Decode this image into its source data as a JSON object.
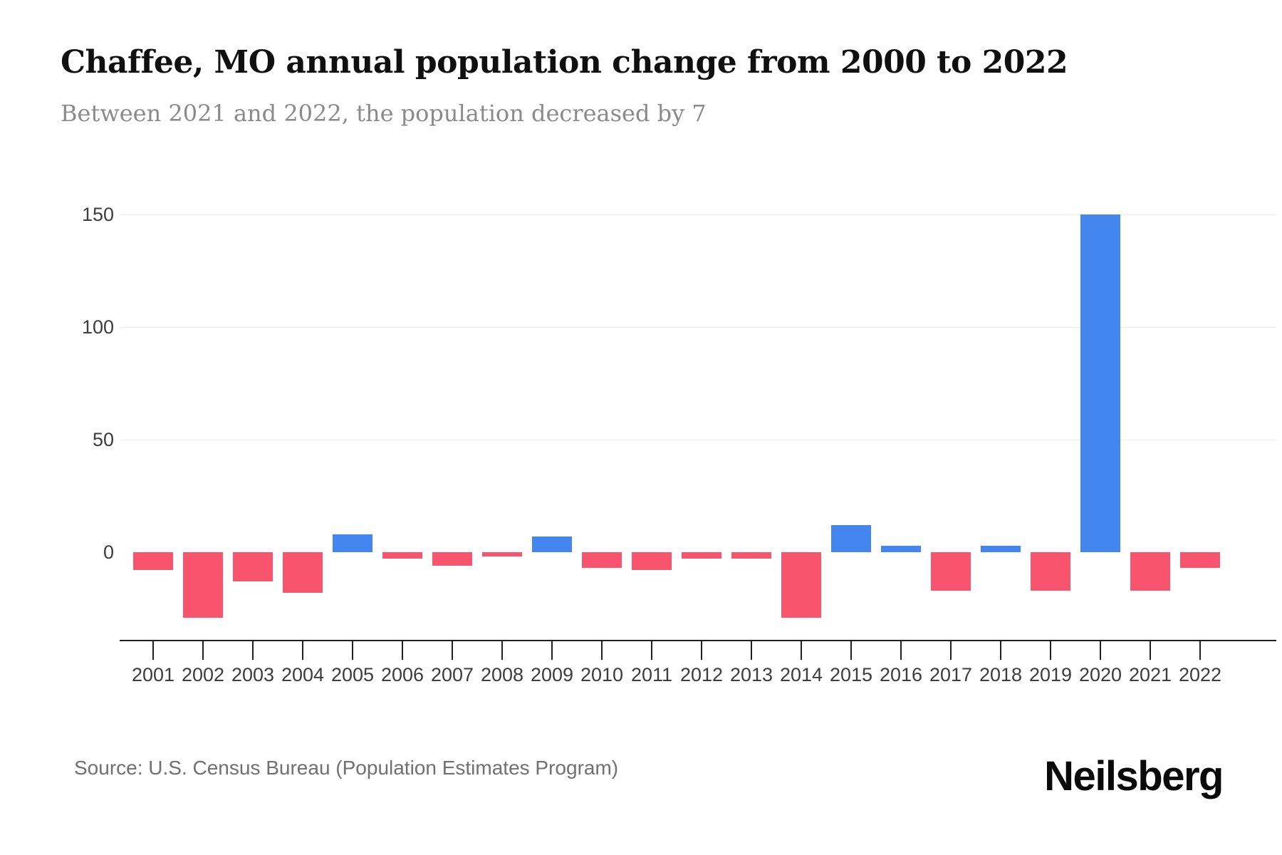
{
  "chart_data": {
    "type": "bar",
    "title": "Chaffee, MO annual population change from 2000 to 2022",
    "subtitle": "Between 2021 and 2022, the population decreased by 7",
    "categories": [
      "2001",
      "2002",
      "2003",
      "2004",
      "2005",
      "2006",
      "2007",
      "2008",
      "2009",
      "2010",
      "2011",
      "2012",
      "2013",
      "2014",
      "2015",
      "2016",
      "2017",
      "2018",
      "2019",
      "2020",
      "2021",
      "2022"
    ],
    "values": [
      -8,
      -29,
      -13,
      -18,
      8,
      -3,
      -6,
      -2,
      7,
      -7,
      -8,
      -3,
      -3,
      -29,
      12,
      3,
      -17,
      3,
      -17,
      150,
      -17,
      -7
    ],
    "yticks": [
      0,
      50,
      100,
      150
    ],
    "ylim": [
      -35,
      160
    ],
    "grid": "horizontal-only",
    "legend": "none",
    "xlabel": "",
    "ylabel": "",
    "colors": {
      "positive": "#4486ef",
      "negative": "#f9546e"
    }
  },
  "footer": {
    "source": "Source: U.S. Census Bureau (Population Estimates Program)",
    "logo": "Neilsberg"
  }
}
